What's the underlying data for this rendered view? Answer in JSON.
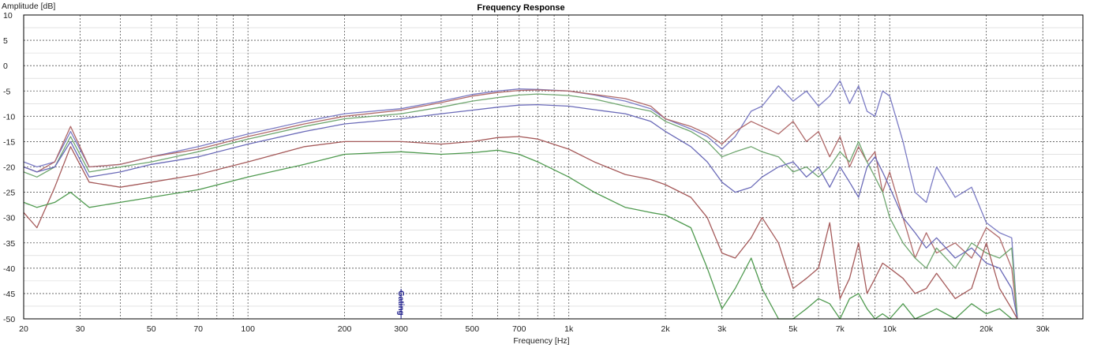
{
  "chart_data": {
    "type": "line",
    "title": "Frequency Response",
    "xlabel": "Frequency [Hz]",
    "ylabel": "Amplitude [dB]",
    "x_scale": "log",
    "xlim": [
      20,
      40000
    ],
    "ylim": [
      -50,
      10
    ],
    "grid": true,
    "x_ticks": [
      20,
      30,
      50,
      70,
      100,
      200,
      300,
      500,
      700,
      1000,
      2000,
      3000,
      5000,
      7000,
      10000,
      20000,
      30000
    ],
    "x_tick_labels": [
      "20",
      "30",
      "50",
      "70",
      "100",
      "200",
      "300",
      "500",
      "700",
      "1k",
      "2k",
      "3k",
      "5k",
      "7k",
      "10k",
      "20k",
      "30k"
    ],
    "y_ticks": [
      10,
      5,
      0,
      -5,
      -10,
      -15,
      -20,
      -25,
      -30,
      -35,
      -40,
      -45,
      -50
    ],
    "y_tick_labels": [
      "10",
      "5",
      "0",
      "-5",
      "-10",
      "-15",
      "-20",
      "-25",
      "-30",
      "-35",
      "-40",
      "-45",
      "-50"
    ],
    "marker": {
      "label": "Gating",
      "x": 300
    },
    "series": [
      {
        "color": "#7b7bc4",
        "x": [
          20,
          22,
          25,
          28,
          32,
          40,
          50,
          70,
          100,
          150,
          200,
          300,
          400,
          500,
          600,
          700,
          800,
          1000,
          1200,
          1500,
          1800,
          2000,
          2400,
          2700,
          3000,
          3300,
          3700,
          4000,
          4500,
          5000,
          5500,
          6000,
          6500,
          7000,
          7500,
          8000,
          8500,
          9000,
          9500,
          10000,
          11000,
          12000,
          13000,
          14000,
          16000,
          18000,
          20000,
          22000,
          24000,
          25000
        ],
        "y": [
          -19,
          -20,
          -19,
          -13,
          -20,
          -19.5,
          -18,
          -16,
          -13.5,
          -11,
          -9.5,
          -8.5,
          -7,
          -5.7,
          -5,
          -4.6,
          -4.7,
          -5,
          -5.8,
          -7,
          -8.5,
          -10.5,
          -12.5,
          -14,
          -16.5,
          -14,
          -9,
          -8,
          -4,
          -7,
          -5,
          -8,
          -6,
          -3,
          -7.5,
          -4,
          -9,
          -10,
          -5,
          -6,
          -15,
          -25,
          -27,
          -20,
          -26,
          -24,
          -31,
          -33,
          -34,
          -50
        ]
      },
      {
        "color": "#b06a6a",
        "x": [
          20,
          22,
          25,
          28,
          32,
          40,
          50,
          70,
          100,
          150,
          200,
          300,
          400,
          500,
          600,
          700,
          800,
          1000,
          1200,
          1500,
          1800,
          2000,
          2400,
          2700,
          3000,
          3300,
          3700,
          4000,
          4500,
          5000,
          5500,
          6000,
          6500,
          7000,
          7500,
          8000,
          8500,
          9000,
          9500,
          10000,
          11000,
          12000,
          13000,
          14000,
          16000,
          18000,
          20000,
          22000,
          24000,
          25000
        ],
        "y": [
          -20,
          -21,
          -19,
          -12,
          -20,
          -19.5,
          -18,
          -16.5,
          -14,
          -11.5,
          -10,
          -8.8,
          -7.3,
          -6,
          -5.3,
          -4.9,
          -4.8,
          -5,
          -5.7,
          -6.5,
          -8,
          -10.5,
          -12,
          -13.5,
          -15.5,
          -13,
          -11,
          -12,
          -13.5,
          -11,
          -15,
          -13,
          -18,
          -14,
          -20,
          -16,
          -19,
          -17,
          -25,
          -21,
          -30,
          -38,
          -33,
          -37,
          -35,
          -38,
          -32,
          -34,
          -40,
          -50
        ]
      },
      {
        "color": "#6fa66f",
        "x": [
          20,
          22,
          25,
          28,
          32,
          40,
          50,
          70,
          100,
          150,
          200,
          300,
          400,
          500,
          600,
          700,
          800,
          1000,
          1200,
          1500,
          1800,
          2000,
          2400,
          2700,
          3000,
          3300,
          3700,
          4000,
          4500,
          5000,
          5500,
          6000,
          6500,
          7000,
          7500,
          8000,
          8500,
          9000,
          9500,
          10000,
          11000,
          12000,
          13000,
          14000,
          16000,
          18000,
          20000,
          22000,
          24000,
          25000
        ],
        "y": [
          -21,
          -22,
          -20,
          -14,
          -21,
          -20,
          -19,
          -17,
          -14.5,
          -12,
          -10.5,
          -9.5,
          -8.2,
          -7,
          -6.3,
          -5.8,
          -5.6,
          -5.9,
          -6.6,
          -8,
          -9,
          -11,
          -13,
          -15,
          -18,
          -17,
          -16,
          -17,
          -18,
          -21,
          -20,
          -22,
          -20,
          -17,
          -19,
          -15,
          -19,
          -22,
          -25,
          -30,
          -35,
          -38,
          -40,
          -36,
          -40,
          -35,
          -37,
          -38,
          -36,
          -50
        ]
      },
      {
        "color": "#6a6ab8",
        "x": [
          20,
          22,
          25,
          28,
          32,
          40,
          50,
          70,
          100,
          150,
          200,
          300,
          400,
          500,
          600,
          700,
          800,
          1000,
          1200,
          1500,
          1800,
          2000,
          2400,
          2700,
          3000,
          3300,
          3700,
          4000,
          4500,
          5000,
          5500,
          6000,
          6500,
          7000,
          7500,
          8000,
          8500,
          9000,
          9500,
          10000,
          11000,
          12000,
          13000,
          14000,
          16000,
          18000,
          20000,
          22000,
          24000,
          25000
        ],
        "y": [
          -20,
          -21,
          -20,
          -15,
          -22,
          -21,
          -19.5,
          -18,
          -15.5,
          -13,
          -11.5,
          -10.5,
          -9.5,
          -8.8,
          -8.2,
          -7.8,
          -7.7,
          -8,
          -8.7,
          -9.5,
          -11,
          -13,
          -16,
          -19,
          -23,
          -25,
          -24,
          -22,
          -20,
          -19,
          -22,
          -20,
          -24,
          -20,
          -23,
          -26,
          -20,
          -18,
          -21,
          -24,
          -30,
          -33,
          -36,
          -34,
          -38,
          -36,
          -39,
          -40,
          -44,
          -50
        ]
      },
      {
        "color": "#a55a5a",
        "x": [
          20,
          22,
          25,
          28,
          32,
          40,
          50,
          70,
          100,
          150,
          200,
          300,
          400,
          500,
          600,
          700,
          800,
          1000,
          1200,
          1500,
          1800,
          2000,
          2400,
          2700,
          3000,
          3300,
          3700,
          4000,
          4500,
          5000,
          5500,
          6000,
          6500,
          7000,
          7500,
          8000,
          8500,
          9000,
          9500,
          10000,
          11000,
          12000,
          13000,
          14000,
          16000,
          18000,
          20000,
          22000,
          24000,
          25000
        ],
        "y": [
          -29,
          -32,
          -24,
          -16,
          -23,
          -24,
          -23,
          -21.5,
          -19,
          -16,
          -15,
          -15,
          -15.5,
          -15,
          -14.2,
          -14,
          -14.5,
          -16.5,
          -19,
          -21.5,
          -22.5,
          -23.5,
          -26,
          -30,
          -37,
          -38,
          -34,
          -30,
          -35,
          -44,
          -42,
          -40,
          -31,
          -46,
          -42,
          -35,
          -45,
          -42,
          -39,
          -40,
          -42,
          -45,
          -44,
          -41,
          -46,
          -44,
          -35,
          -44,
          -48,
          -50
        ]
      },
      {
        "color": "#4f9a4f",
        "x": [
          20,
          22,
          25,
          28,
          32,
          40,
          50,
          70,
          100,
          150,
          200,
          300,
          400,
          500,
          600,
          700,
          800,
          1000,
          1200,
          1500,
          1800,
          2000,
          2400,
          2700,
          3000,
          3300,
          3700,
          4000,
          4500,
          5000,
          5500,
          6000,
          6500,
          7000,
          7500,
          8000,
          8500,
          9000,
          9500,
          10000,
          11000,
          12000,
          13000,
          14000,
          16000,
          18000,
          20000,
          22000,
          24000,
          25000
        ],
        "y": [
          -27,
          -28,
          -27,
          -25,
          -28,
          -27,
          -26,
          -24.5,
          -22,
          -19.5,
          -17.5,
          -17,
          -17.5,
          -17.2,
          -16.7,
          -17.5,
          -19,
          -22,
          -25,
          -28,
          -29,
          -29.5,
          -32,
          -40,
          -48,
          -44,
          -38,
          -44,
          -50,
          -50,
          -48,
          -46,
          -47,
          -50,
          -46,
          -45,
          -48,
          -50,
          -49,
          -50,
          -47,
          -50,
          -49,
          -48,
          -50,
          -47,
          -49,
          -48,
          -50,
          -50
        ]
      }
    ]
  }
}
